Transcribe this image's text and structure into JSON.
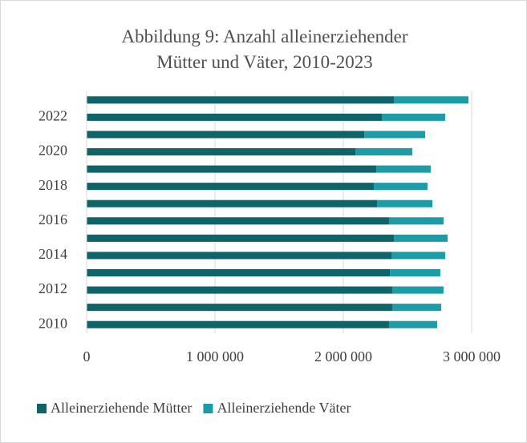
{
  "chart_data": {
    "type": "stacked-barh",
    "title": "Abbildung 9: Anzahl alleinerziehender Mütter und Väter, 2010-2023",
    "categories": [
      "2010",
      null,
      "2012",
      null,
      "2014",
      null,
      "2016",
      null,
      "2018",
      null,
      "2020",
      null,
      "2022",
      null
    ],
    "series": [
      {
        "name": "Alleinerziehende Mütter",
        "color": "#0e6468",
        "values": [
          2356000,
          2381000,
          2381000,
          2363000,
          2375000,
          2394000,
          2356000,
          2263000,
          2238000,
          2256000,
          2094000,
          2163000,
          2300000,
          2394000
        ]
      },
      {
        "name": "Alleinerziehende Väter",
        "color": "#1b9ca6",
        "values": [
          375000,
          382000,
          400000,
          393000,
          419000,
          419000,
          425000,
          431000,
          418000,
          425000,
          444000,
          475000,
          494000,
          581000
        ]
      }
    ],
    "xlim": [
      0,
      3000000
    ],
    "xticks": [
      0,
      {
        "value": 1000000,
        "label": "1 000 000"
      },
      {
        "value": 2000000,
        "label": "2 000 000"
      },
      {
        "value": 3000000,
        "label": "3 000 000"
      }
    ],
    "grid": true,
    "legend": "bottom"
  }
}
